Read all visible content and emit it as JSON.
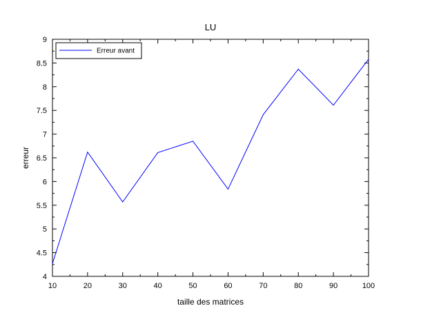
{
  "chart_data": {
    "type": "line",
    "title": "LU",
    "xlabel": "taille des matrices",
    "ylabel": "erreur",
    "xlim": [
      10,
      100
    ],
    "ylim": [
      4,
      9
    ],
    "xticks": [
      10,
      20,
      30,
      40,
      50,
      60,
      70,
      80,
      90,
      100
    ],
    "yticks": [
      4,
      4.5,
      5,
      5.5,
      6,
      6.5,
      7,
      7.5,
      8,
      8.5,
      9
    ],
    "grid": false,
    "legend_position": "top-left",
    "series": [
      {
        "name": "Erreur avant",
        "color": "#0000ff",
        "x": [
          10,
          20,
          30,
          40,
          50,
          60,
          70,
          80,
          90,
          100
        ],
        "y": [
          4.27,
          6.62,
          5.57,
          6.61,
          6.85,
          5.84,
          7.41,
          8.37,
          7.61,
          8.58
        ]
      }
    ]
  }
}
